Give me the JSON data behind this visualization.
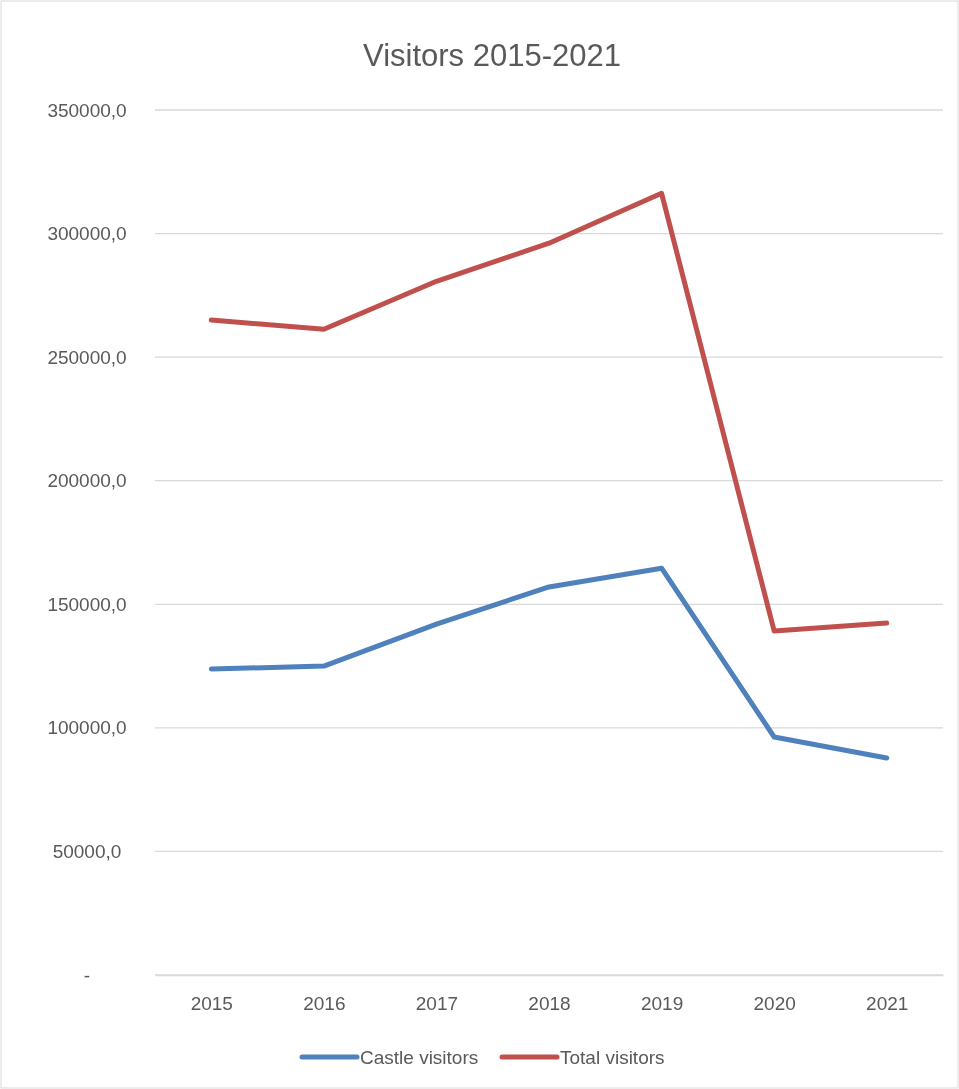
{
  "chart_data": {
    "type": "line",
    "title": "Visitors 2015-2021",
    "categories": [
      "2015",
      "2016",
      "2017",
      "2018",
      "2019",
      "2020",
      "2021"
    ],
    "series": [
      {
        "name": "Castle visitors",
        "color": "#4f81bd",
        "values": [
          123800,
          125000,
          142000,
          157000,
          164600,
          96300,
          87800
        ]
      },
      {
        "name": "Total visitors",
        "color": "#c0504d",
        "values": [
          265000,
          261300,
          280700,
          296100,
          316300,
          139200,
          142400
        ]
      }
    ],
    "ylim": [
      0,
      350000
    ],
    "yticks": [
      {
        "value": 0,
        "label": "-"
      },
      {
        "value": 50000,
        "label": "50000,0"
      },
      {
        "value": 100000,
        "label": "100000,0"
      },
      {
        "value": 150000,
        "label": "150000,0"
      },
      {
        "value": 200000,
        "label": "200000,0"
      },
      {
        "value": 250000,
        "label": "250000,0"
      },
      {
        "value": 300000,
        "label": "300000,0"
      },
      {
        "value": 350000,
        "label": "350000,0"
      }
    ],
    "grid": "y",
    "legend": "bottom",
    "marker": "none",
    "line_style": "solid"
  }
}
